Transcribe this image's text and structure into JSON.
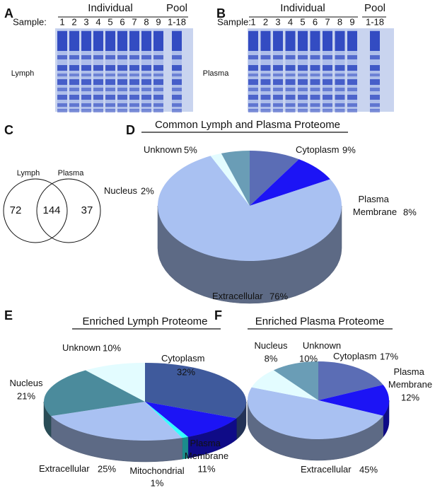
{
  "panel_labels": [
    "A",
    "B",
    "C",
    "D",
    "E",
    "F"
  ],
  "gels": [
    {
      "sample_label": "Sample:",
      "group_labels": [
        "Individual",
        "Pool"
      ],
      "lanes": [
        "1",
        "2",
        "3",
        "4",
        "5",
        "6",
        "7",
        "8",
        "9",
        "1-18"
      ],
      "tissue": "Lymph"
    },
    {
      "sample_label": "Sample:",
      "group_labels": [
        "Individual",
        "Pool"
      ],
      "lanes": [
        "1",
        "2",
        "3",
        "4",
        "5",
        "6",
        "7",
        "8",
        "9",
        "1-18"
      ],
      "tissue": "Plasma"
    }
  ],
  "venn": {
    "sets": [
      "Lymph",
      "Plasma"
    ],
    "counts": [
      72,
      144,
      37
    ]
  },
  "chart_data": [
    {
      "type": "pie",
      "title": "Common  Lymph and Plasma Proteome",
      "categories": [
        "Cytoplasm",
        "Plasma Membrane",
        "Extracellular",
        "Nucleus",
        "Unknown"
      ],
      "values": [
        9,
        8,
        76,
        2,
        5
      ],
      "value_labels": [
        "9%",
        "8%",
        "76%",
        "2%",
        "5%"
      ],
      "colors": [
        "#5b6db5",
        "#1c14f5",
        "#a9c1f2",
        "#e3fcff",
        "#6a9db6"
      ]
    },
    {
      "type": "pie",
      "title": "Enriched Lymph Proteome",
      "categories": [
        "Cytoplasm",
        "Plasma Membrane",
        "Mitochondrial",
        "Extracellular",
        "Nucleus",
        "Unknown"
      ],
      "values": [
        32,
        11,
        1,
        25,
        21,
        10
      ],
      "value_labels": [
        "32%",
        "11%",
        "1%",
        "25%",
        "21%",
        "10%"
      ],
      "colors": [
        "#3f5a9c",
        "#1c14f5",
        "#33ffff",
        "#a9c1f2",
        "#4b8b9c",
        "#e3fcff"
      ]
    },
    {
      "type": "pie",
      "title": "Enriched Plasma Proteome",
      "categories": [
        "Cytoplasm",
        "Plasma Membrane",
        "Extracellular",
        "Nucleus",
        "Unknown"
      ],
      "values": [
        17,
        12,
        45,
        8,
        10
      ],
      "value_labels": [
        "17%",
        "12%",
        "45%",
        "8%",
        "10%"
      ],
      "colors": [
        "#5b6db5",
        "#1c14f5",
        "#a9c1f2",
        "#e3fcff",
        "#6a9db6"
      ]
    }
  ]
}
